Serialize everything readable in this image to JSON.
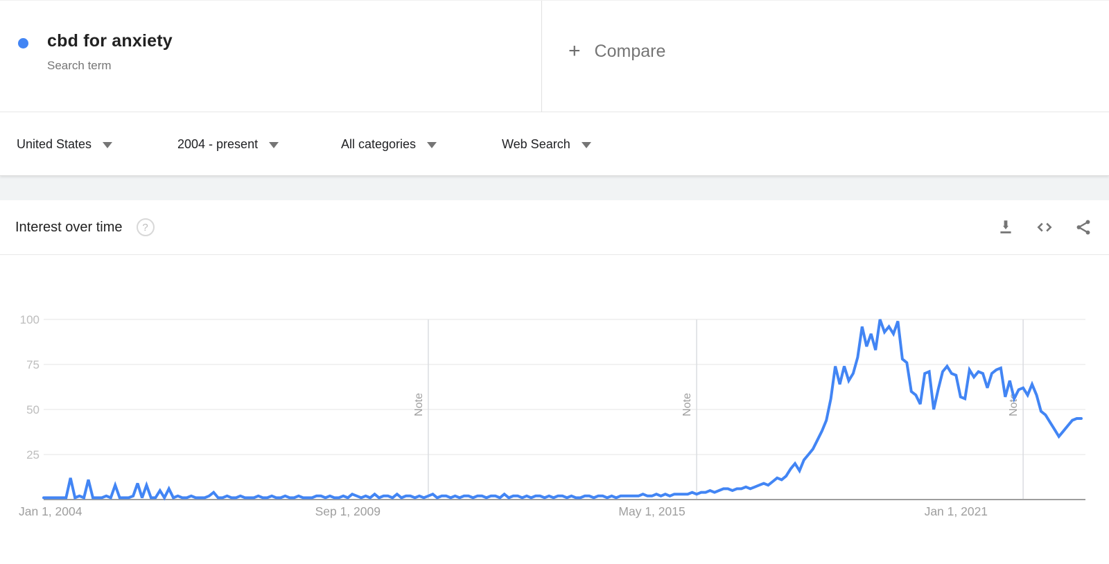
{
  "header": {
    "term": {
      "title": "cbd for anxiety",
      "subtitle": "Search term"
    },
    "plus_glyph": "+",
    "compare_label": "Compare"
  },
  "filters": [
    {
      "id": "geo",
      "label": "United States"
    },
    {
      "id": "time",
      "label": "2004 - present"
    },
    {
      "id": "category",
      "label": "All categories"
    },
    {
      "id": "search-type",
      "label": "Web Search"
    }
  ],
  "chart_card": {
    "title": "Interest over time",
    "help_glyph": "?"
  },
  "icons": {
    "help": "help-icon",
    "download": "download-icon",
    "embed": "embed-code-icon",
    "share": "share-icon",
    "dropdown": "dropdown-arrow-icon",
    "legend_dot": "series-color-dot"
  },
  "colors": {
    "accent_blue": "#4285f4",
    "text_dark": "#212121",
    "text_gray": "#757575",
    "strip_gray": "#f1f3f4"
  },
  "chart_data": {
    "type": "line",
    "title": "Interest over time",
    "series_name": "cbd for anxiety",
    "x_start": "2004-01",
    "x_freq": "monthly",
    "xlabel": "",
    "ylabel": "",
    "ylim": [
      0,
      100
    ],
    "yticks": [
      25,
      50,
      75,
      100
    ],
    "grid": true,
    "legend_position": "none",
    "line_color": "#4285f4",
    "note_label": "Note",
    "note_months": [
      86,
      146,
      219
    ],
    "xticks": [
      {
        "label": "Jan 1, 2004",
        "month": 0
      },
      {
        "label": "Sep 1, 2009",
        "month": 68
      },
      {
        "label": "May 1, 2015",
        "month": 136
      },
      {
        "label": "Jan 1, 2021",
        "month": 204
      }
    ],
    "values": [
      1,
      1,
      1,
      1,
      1,
      1,
      12,
      1,
      2,
      1,
      11,
      1,
      1,
      1,
      2,
      1,
      8,
      1,
      1,
      1,
      2,
      9,
      1,
      8,
      1,
      1,
      5,
      1,
      6,
      1,
      2,
      1,
      1,
      2,
      1,
      1,
      1,
      2,
      4,
      1,
      1,
      2,
      1,
      1,
      2,
      1,
      1,
      1,
      2,
      1,
      1,
      2,
      1,
      1,
      2,
      1,
      1,
      2,
      1,
      1,
      1,
      2,
      2,
      1,
      2,
      1,
      1,
      2,
      1,
      3,
      2,
      1,
      2,
      1,
      3,
      1,
      2,
      2,
      1,
      3,
      1,
      2,
      2,
      1,
      2,
      1,
      2,
      3,
      1,
      2,
      2,
      1,
      2,
      1,
      2,
      2,
      1,
      2,
      2,
      1,
      2,
      2,
      1,
      3,
      1,
      2,
      2,
      1,
      2,
      1,
      2,
      2,
      1,
      2,
      1,
      2,
      2,
      1,
      2,
      1,
      1,
      2,
      2,
      1,
      2,
      2,
      1,
      2,
      1,
      2,
      2,
      2,
      2,
      2,
      3,
      2,
      2,
      3,
      2,
      3,
      2,
      3,
      3,
      3,
      3,
      4,
      3,
      4,
      4,
      5,
      4,
      5,
      6,
      6,
      5,
      6,
      6,
      7,
      6,
      7,
      8,
      9,
      8,
      10,
      12,
      11,
      13,
      17,
      20,
      16,
      22,
      25,
      28,
      33,
      38,
      44,
      56,
      74,
      64,
      74,
      66,
      70,
      79,
      96,
      85,
      92,
      83,
      100,
      93,
      96,
      92,
      99,
      78,
      76,
      60,
      58,
      53,
      70,
      71,
      50,
      61,
      71,
      74,
      70,
      69,
      57,
      56,
      72,
      68,
      71,
      70,
      62,
      70,
      72,
      73,
      57,
      66,
      56,
      61,
      62,
      58,
      64,
      58,
      49,
      47,
      43,
      39,
      35,
      38,
      41,
      44,
      45,
      45
    ],
    "chart_colors": {
      "grid": "#e6e6e6",
      "baseline": "#9e9e9e",
      "note_line": "#dadce0",
      "y_label": "#bdbdbd",
      "x_label": "#9e9e9e"
    }
  }
}
